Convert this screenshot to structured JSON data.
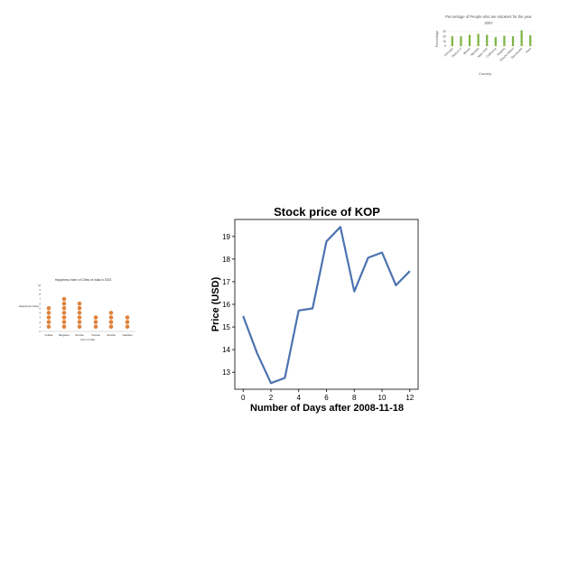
{
  "chart_data": [
    {
      "type": "line",
      "title": "Stock price of KOP",
      "xlabel": "Number of Days after 2008-11-18",
      "ylabel": "Price (USD)",
      "x": [
        0,
        1,
        2,
        3,
        4,
        5,
        6,
        7,
        8,
        9,
        10,
        11,
        12
      ],
      "y": [
        15.48,
        13.85,
        12.52,
        12.75,
        15.73,
        15.82,
        18.78,
        19.42,
        16.57,
        18.06,
        18.29,
        16.84,
        17.47
      ],
      "xlim": [
        -0.6,
        12.6
      ],
      "ylim": [
        12.25,
        19.75
      ],
      "xticks": [
        0,
        2,
        4,
        6,
        8,
        10,
        12
      ],
      "yticks": [
        13,
        14,
        15,
        16,
        17,
        18,
        19
      ],
      "grid": false,
      "line_color": "#4c72b0"
    },
    {
      "type": "bar",
      "title": "Percentage of People who are smokers for the year",
      "subtitle": "2007",
      "xlabel": "Country",
      "ylabel": "Percentage",
      "categories": [
        "Chicago",
        "District of",
        "Illinois",
        "Nevada",
        "New York",
        "California",
        "Virginia",
        "Rhode Island",
        "Tennessee",
        "Iowa"
      ],
      "values": [
        20,
        20,
        23,
        25,
        23,
        18,
        21,
        20,
        32,
        22
      ],
      "ylim": [
        0,
        35
      ],
      "yticks": [
        0,
        10,
        20,
        30
      ],
      "bar_color": "#7cb342"
    },
    {
      "type": "scatter",
      "title": "Happiness Index of Cities of India in 2023",
      "xlabel": "City in India",
      "ylabel": "Happiness Index",
      "categories": [
        "Kolkata",
        "Bangalore",
        "Mumbai",
        "Chennai",
        "Mumbai",
        "Vadodara"
      ],
      "values": [
        5,
        7,
        6,
        3,
        4,
        3
      ],
      "ylim": [
        0,
        10
      ],
      "yticks": [
        0,
        1,
        2,
        3,
        4,
        5,
        6,
        7,
        8,
        9,
        10
      ],
      "dot_color": "#e0823a"
    }
  ]
}
